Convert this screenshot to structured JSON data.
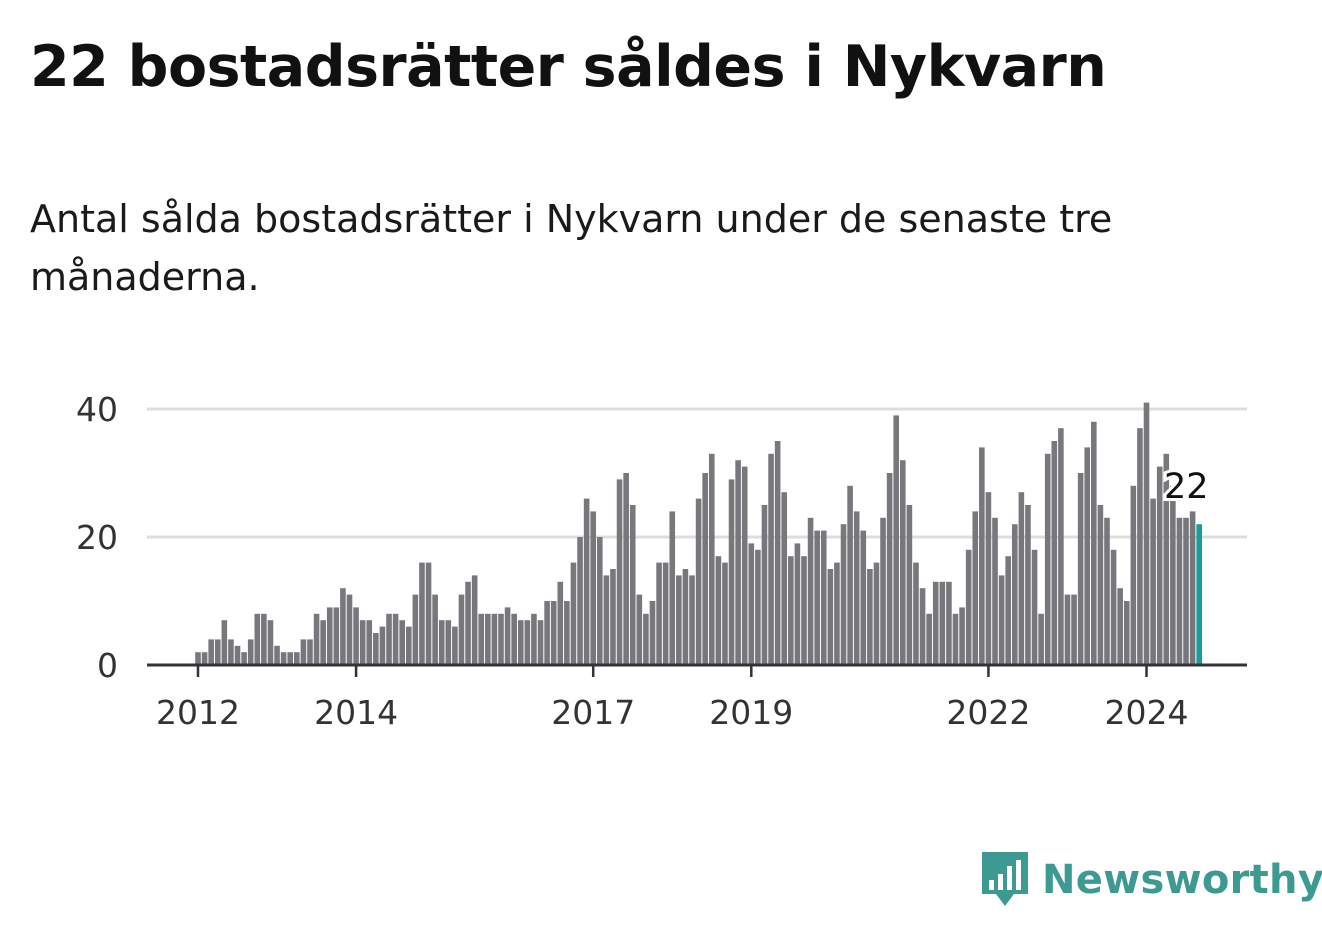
{
  "title": "22 bostadsrätter såldes i Nykvarn",
  "subtitle": "Antal sålda bostadsrätter i Nykvarn under de senaste tre månaderna.",
  "brand": {
    "name": "Newsworthy",
    "color": "#3d9a92",
    "icon": "newsworthy-logo-icon"
  },
  "colors": {
    "bar": "#78777c",
    "highlight": "#1a9c97",
    "grid": "#dddddd",
    "axis": "#333333",
    "text": "#333333"
  },
  "chart_data": {
    "type": "bar",
    "title": "22 bostadsrätter såldes i Nykvarn",
    "xlabel": "",
    "ylabel": "",
    "ylim": [
      0,
      40
    ],
    "yticks": [
      0,
      20,
      40
    ],
    "xticks": [
      {
        "label": "2012",
        "index": 0
      },
      {
        "label": "2014",
        "index": 24
      },
      {
        "label": "2017",
        "index": 60
      },
      {
        "label": "2019",
        "index": 84
      },
      {
        "label": "2022",
        "index": 120
      },
      {
        "label": "2024",
        "index": 144
      }
    ],
    "annotation": {
      "label": "22",
      "index": 150
    },
    "x_start": "2012-01",
    "values": [
      2,
      2,
      4,
      4,
      7,
      4,
      3,
      2,
      4,
      8,
      8,
      7,
      3,
      2,
      2,
      2,
      4,
      4,
      8,
      7,
      9,
      9,
      12,
      11,
      9,
      7,
      7,
      5,
      6,
      8,
      8,
      7,
      6,
      11,
      16,
      16,
      11,
      7,
      7,
      6,
      11,
      13,
      14,
      8,
      8,
      8,
      8,
      9,
      8,
      7,
      7,
      8,
      7,
      10,
      10,
      13,
      10,
      16,
      20,
      26,
      24,
      20,
      14,
      15,
      29,
      30,
      25,
      11,
      8,
      10,
      16,
      16,
      24,
      14,
      15,
      14,
      26,
      30,
      33,
      17,
      16,
      29,
      32,
      31,
      19,
      18,
      25,
      33,
      35,
      27,
      17,
      19,
      17,
      23,
      21,
      21,
      15,
      16,
      22,
      28,
      24,
      21,
      15,
      16,
      23,
      30,
      39,
      32,
      25,
      16,
      12,
      8,
      13,
      13,
      13,
      8,
      9,
      18,
      24,
      34,
      27,
      23,
      14,
      17,
      22,
      27,
      25,
      18,
      8,
      33,
      35,
      37,
      11,
      11,
      30,
      34,
      38,
      25,
      23,
      18,
      12,
      10,
      28,
      37,
      41,
      26,
      31,
      33,
      28,
      23,
      23,
      24,
      22
    ]
  }
}
